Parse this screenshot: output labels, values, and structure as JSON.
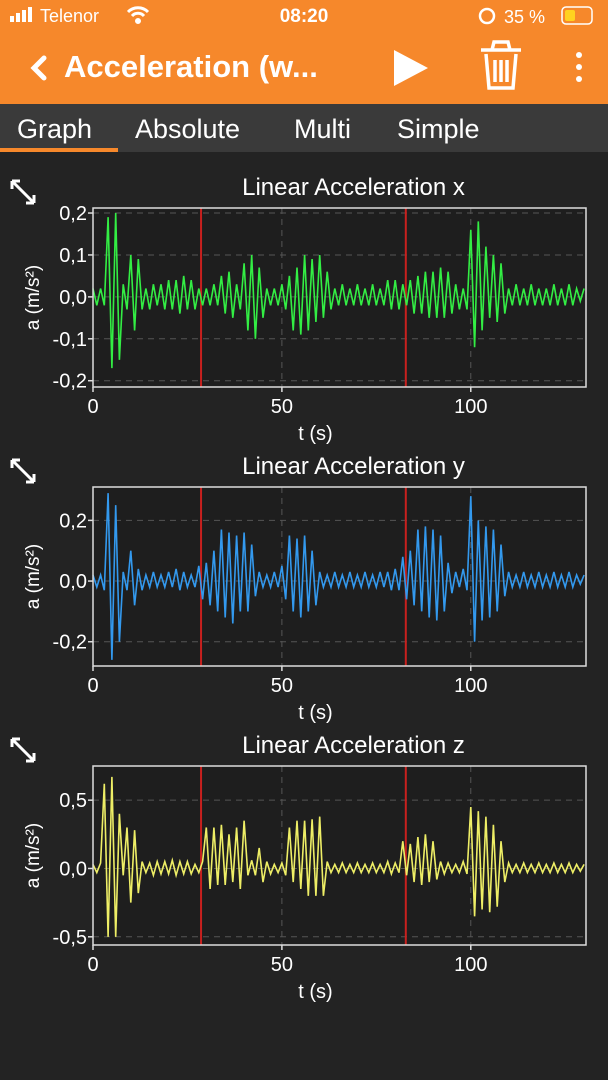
{
  "status": {
    "carrier": "Telenor",
    "time": "08:20",
    "battery": "35 %"
  },
  "header": {
    "title": "Acceleration (w..."
  },
  "tabs": [
    "Graph",
    "Absolute",
    "Multi",
    "Simple"
  ],
  "chart_data": [
    {
      "type": "line",
      "title": "Linear Acceleration x",
      "x_label": "t (s)",
      "y_label": "a (m/s²)",
      "color": "#33ee44",
      "grid": true,
      "xlim": [
        0,
        130.5
      ],
      "ylim": [
        -0.215,
        0.212
      ],
      "xticks": [
        0,
        50,
        100
      ],
      "yticks": [
        {
          "value": 0.2,
          "label": "0,2"
        },
        {
          "value": 0.1,
          "label": "0,1"
        },
        {
          "value": 0,
          "label": "0,0"
        },
        {
          "value": -0.1,
          "label": "-0,1"
        },
        {
          "value": -0.2,
          "label": "-0,2"
        }
      ],
      "markers": [
        28.6,
        82.8
      ],
      "marker_color": "#c8201e",
      "x": [
        0,
        1,
        2,
        3,
        4,
        5,
        6,
        7,
        8,
        9,
        10,
        11,
        12,
        13,
        14,
        15,
        16,
        17,
        18,
        19,
        20,
        21,
        22,
        23,
        24,
        25,
        26,
        27,
        28,
        29,
        30,
        31,
        32,
        33,
        34,
        35,
        36,
        37,
        38,
        39,
        40,
        41,
        42,
        43,
        44,
        45,
        46,
        47,
        48,
        49,
        50,
        51,
        52,
        53,
        54,
        55,
        56,
        57,
        58,
        59,
        60,
        61,
        62,
        63,
        64,
        65,
        66,
        67,
        68,
        69,
        70,
        71,
        72,
        73,
        74,
        75,
        76,
        77,
        78,
        79,
        80,
        81,
        82,
        83,
        84,
        85,
        86,
        87,
        88,
        89,
        90,
        91,
        92,
        93,
        94,
        95,
        96,
        97,
        98,
        99,
        100,
        101,
        102,
        103,
        104,
        105,
        106,
        107,
        108,
        109,
        110,
        111,
        112,
        113,
        114,
        115,
        116,
        117,
        118,
        119,
        120,
        121,
        122,
        123,
        124,
        125,
        126,
        127,
        128,
        129,
        130
      ],
      "values": [
        0.02,
        -0.02,
        0.02,
        -0.02,
        0.19,
        -0.17,
        0.2,
        -0.15,
        0.03,
        -0.03,
        0.1,
        -0.08,
        0.09,
        -0.03,
        0.02,
        -0.03,
        0.03,
        -0.02,
        0.03,
        -0.03,
        0.04,
        -0.03,
        0.04,
        -0.04,
        0.05,
        -0.03,
        0.04,
        -0.03,
        0.02,
        -0.02,
        0.02,
        -0.02,
        0.03,
        -0.02,
        0.05,
        -0.04,
        0.06,
        -0.05,
        0.03,
        -0.03,
        0.08,
        -0.08,
        0.1,
        -0.1,
        0.07,
        -0.05,
        0.02,
        -0.02,
        0.02,
        -0.02,
        0.03,
        -0.03,
        0.05,
        -0.08,
        0.07,
        -0.09,
        0.1,
        -0.08,
        0.09,
        -0.06,
        0.1,
        -0.05,
        0.06,
        -0.03,
        0.02,
        -0.02,
        0.03,
        -0.02,
        0.02,
        -0.02,
        0.03,
        -0.02,
        0.02,
        -0.02,
        0.03,
        -0.02,
        0.02,
        -0.02,
        0.04,
        -0.03,
        0.04,
        -0.03,
        0.03,
        -0.02,
        0.04,
        -0.04,
        0.05,
        -0.04,
        0.06,
        -0.05,
        0.06,
        -0.05,
        0.07,
        -0.05,
        0.06,
        -0.04,
        0.03,
        -0.03,
        0.02,
        -0.03,
        0.16,
        -0.12,
        0.18,
        -0.08,
        0.12,
        -0.05,
        0.1,
        -0.06,
        0.08,
        -0.04,
        0.02,
        -0.02,
        0.03,
        -0.02,
        0.02,
        -0.02,
        0.03,
        -0.02,
        0.02,
        -0.02,
        0.02,
        -0.02,
        0.03,
        -0.02,
        0.02,
        -0.02,
        0.03,
        -0.02,
        0.02,
        -0.01,
        0.02
      ]
    },
    {
      "type": "line",
      "title": "Linear Acceleration y",
      "x_label": "t (s)",
      "y_label": "a (m/s²)",
      "color": "#3399ee",
      "grid": true,
      "xlim": [
        0,
        130.5
      ],
      "ylim": [
        -0.28,
        0.31
      ],
      "xticks": [
        0,
        50,
        100
      ],
      "yticks": [
        {
          "value": 0.2,
          "label": "0,2"
        },
        {
          "value": 0,
          "label": "0,0"
        },
        {
          "value": -0.2,
          "label": "-0,2"
        }
      ],
      "markers": [
        28.6,
        82.8
      ],
      "marker_color": "#c8201e",
      "x": [
        0,
        1,
        2,
        3,
        4,
        5,
        6,
        7,
        8,
        9,
        10,
        11,
        12,
        13,
        14,
        15,
        16,
        17,
        18,
        19,
        20,
        21,
        22,
        23,
        24,
        25,
        26,
        27,
        28,
        29,
        30,
        31,
        32,
        33,
        34,
        35,
        36,
        37,
        38,
        39,
        40,
        41,
        42,
        43,
        44,
        45,
        46,
        47,
        48,
        49,
        50,
        51,
        52,
        53,
        54,
        55,
        56,
        57,
        58,
        59,
        60,
        61,
        62,
        63,
        64,
        65,
        66,
        67,
        68,
        69,
        70,
        71,
        72,
        73,
        74,
        75,
        76,
        77,
        78,
        79,
        80,
        81,
        82,
        83,
        84,
        85,
        86,
        87,
        88,
        89,
        90,
        91,
        92,
        93,
        94,
        95,
        96,
        97,
        98,
        99,
        100,
        101,
        102,
        103,
        104,
        105,
        106,
        107,
        108,
        109,
        110,
        111,
        112,
        113,
        114,
        115,
        116,
        117,
        118,
        119,
        120,
        121,
        122,
        123,
        124,
        125,
        126,
        127,
        128,
        129,
        130
      ],
      "values": [
        0.02,
        -0.02,
        0.02,
        -0.03,
        0.29,
        -0.26,
        0.25,
        -0.2,
        0.03,
        -0.03,
        0.1,
        -0.08,
        0.04,
        -0.03,
        0.02,
        -0.02,
        0.03,
        -0.02,
        0.02,
        -0.02,
        0.03,
        -0.02,
        0.04,
        -0.03,
        0.03,
        -0.02,
        0.02,
        -0.02,
        0.05,
        -0.06,
        0.06,
        -0.08,
        0.1,
        -0.1,
        0.17,
        -0.12,
        0.16,
        -0.14,
        0.15,
        -0.1,
        0.16,
        -0.1,
        0.12,
        -0.05,
        0.03,
        -0.02,
        0.02,
        -0.02,
        0.03,
        -0.02,
        0.05,
        -0.06,
        0.15,
        -0.1,
        0.14,
        -0.12,
        0.15,
        -0.1,
        0.1,
        -0.08,
        0.03,
        -0.02,
        0.02,
        -0.02,
        0.03,
        -0.02,
        0.02,
        -0.02,
        0.03,
        -0.02,
        0.02,
        -0.02,
        0.03,
        -0.02,
        0.02,
        -0.02,
        0.03,
        -0.02,
        0.03,
        -0.03,
        0.04,
        -0.03,
        0.08,
        -0.06,
        0.1,
        -0.08,
        0.17,
        -0.1,
        0.18,
        -0.12,
        0.17,
        -0.13,
        0.15,
        -0.1,
        0.06,
        -0.04,
        0.03,
        -0.02,
        0.04,
        -0.03,
        0.28,
        -0.2,
        0.2,
        -0.13,
        0.18,
        -0.12,
        0.17,
        -0.1,
        0.12,
        -0.05,
        0.03,
        -0.02,
        0.02,
        -0.02,
        0.03,
        -0.02,
        0.02,
        -0.02,
        0.03,
        -0.02,
        0.02,
        -0.02,
        0.03,
        -0.02,
        0.02,
        -0.02,
        0.03,
        -0.02,
        0.02,
        -0.01,
        0.02
      ]
    },
    {
      "type": "line",
      "title": "Linear Acceleration z",
      "x_label": "t (s)",
      "y_label": "a (m/s²)",
      "color": "#eeee66",
      "grid": true,
      "xlim": [
        0,
        130.5
      ],
      "ylim": [
        -0.56,
        0.75
      ],
      "xticks": [
        0,
        50,
        100
      ],
      "yticks": [
        {
          "value": 0.5,
          "label": "0,5"
        },
        {
          "value": 0,
          "label": "0,0"
        },
        {
          "value": -0.5,
          "label": "-0,5"
        }
      ],
      "markers": [
        28.6,
        82.8
      ],
      "marker_color": "#c8201e",
      "x": [
        0,
        1,
        2,
        3,
        4,
        5,
        6,
        7,
        8,
        9,
        10,
        11,
        12,
        13,
        14,
        15,
        16,
        17,
        18,
        19,
        20,
        21,
        22,
        23,
        24,
        25,
        26,
        27,
        28,
        29,
        30,
        31,
        32,
        33,
        34,
        35,
        36,
        37,
        38,
        39,
        40,
        41,
        42,
        43,
        44,
        45,
        46,
        47,
        48,
        49,
        50,
        51,
        52,
        53,
        54,
        55,
        56,
        57,
        58,
        59,
        60,
        61,
        62,
        63,
        64,
        65,
        66,
        67,
        68,
        69,
        70,
        71,
        72,
        73,
        74,
        75,
        76,
        77,
        78,
        79,
        80,
        81,
        82,
        83,
        84,
        85,
        86,
        87,
        88,
        89,
        90,
        91,
        92,
        93,
        94,
        95,
        96,
        97,
        98,
        99,
        100,
        101,
        102,
        103,
        104,
        105,
        106,
        107,
        108,
        109,
        110,
        111,
        112,
        113,
        114,
        115,
        116,
        117,
        118,
        119,
        120,
        121,
        122,
        123,
        124,
        125,
        126,
        127,
        128,
        129,
        130
      ],
      "values": [
        0.03,
        -0.03,
        0.04,
        0.62,
        -0.5,
        0.67,
        -0.5,
        0.4,
        -0.05,
        0.3,
        -0.25,
        0.28,
        -0.18,
        0.05,
        -0.03,
        0.04,
        -0.05,
        0.05,
        -0.04,
        0.05,
        -0.04,
        0.06,
        -0.05,
        0.05,
        -0.04,
        0.05,
        -0.04,
        0.03,
        -0.03,
        0.05,
        0.3,
        -0.15,
        0.3,
        -0.12,
        0.32,
        -0.12,
        0.25,
        -0.1,
        0.3,
        -0.15,
        0.35,
        -0.05,
        0.06,
        -0.05,
        0.15,
        -0.1,
        0.05,
        -0.04,
        0.03,
        -0.03,
        0.04,
        -0.05,
        0.3,
        -0.1,
        0.35,
        -0.15,
        0.35,
        -0.2,
        0.36,
        -0.2,
        0.38,
        -0.2,
        0.05,
        -0.03,
        0.03,
        -0.03,
        0.04,
        -0.03,
        0.03,
        -0.03,
        0.04,
        -0.03,
        0.03,
        -0.03,
        0.04,
        -0.03,
        0.03,
        -0.03,
        0.05,
        -0.04,
        0.04,
        -0.03,
        0.2,
        -0.05,
        0.18,
        -0.1,
        0.23,
        -0.12,
        0.25,
        -0.1,
        0.2,
        -0.08,
        0.05,
        -0.04,
        0.04,
        -0.03,
        0.03,
        -0.03,
        0.05,
        -0.04,
        0.45,
        -0.35,
        0.42,
        -0.3,
        0.38,
        -0.32,
        0.32,
        -0.28,
        0.2,
        -0.1,
        0.04,
        -0.03,
        0.03,
        -0.03,
        0.04,
        -0.03,
        0.03,
        -0.03,
        0.04,
        -0.03,
        0.03,
        -0.03,
        0.04,
        -0.03,
        0.03,
        -0.03,
        0.04,
        -0.03,
        0.03,
        -0.02,
        0.03
      ]
    }
  ]
}
